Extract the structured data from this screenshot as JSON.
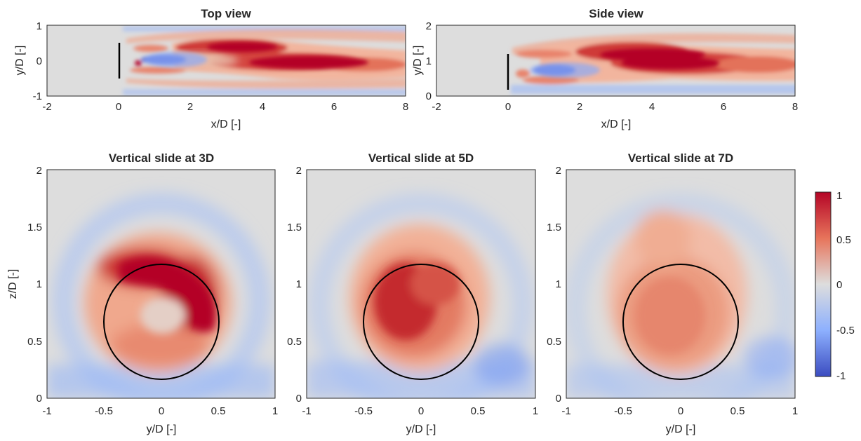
{
  "figure": {
    "colormap": {
      "low": "#3b4cc0",
      "mid": "#dddddd",
      "high": "#b40426"
    },
    "colorbar": {
      "range": [
        -1,
        1
      ],
      "ticks": [
        "1",
        "0.5",
        "0",
        "-0.5",
        "-1"
      ]
    }
  },
  "chart_data": [
    {
      "type": "heatmap",
      "title": "Top view",
      "xlabel": "x/D [-]",
      "ylabel": "y/D [-]",
      "xlim": [
        -2,
        8
      ],
      "ylim": [
        -1,
        1
      ],
      "xticks": [
        "-2",
        "0",
        "2",
        "4",
        "6",
        "8"
      ],
      "yticks": [
        "-1",
        "0",
        "1"
      ],
      "turbine": {
        "x": 0,
        "y_range": [
          -0.5,
          0.5
        ]
      },
      "grid": false
    },
    {
      "type": "heatmap",
      "title": "Side view",
      "xlabel": "x/D [-]",
      "ylabel": "y/D [-]",
      "xlim": [
        -2,
        8
      ],
      "ylim": [
        0,
        2
      ],
      "xticks": [
        "-2",
        "0",
        "2",
        "4",
        "6",
        "8"
      ],
      "yticks": [
        "0",
        "1",
        "2"
      ],
      "turbine": {
        "x": 0,
        "y_range": [
          0.17,
          1.17
        ]
      },
      "grid": false
    },
    {
      "type": "heatmap",
      "title": "Vertical slide at 3D",
      "xlabel": "y/D [-]",
      "ylabel": "z/D [-]",
      "xlim": [
        -1,
        1
      ],
      "ylim": [
        0,
        2
      ],
      "xticks": [
        "-1",
        "-0.5",
        "0",
        "0.5",
        "1"
      ],
      "yticks": [
        "0",
        "0.5",
        "1",
        "1.5",
        "2"
      ],
      "rotor_circle": {
        "center": [
          0,
          0.67
        ],
        "radius": 0.5
      },
      "grid": false
    },
    {
      "type": "heatmap",
      "title": "Vertical slide at 5D",
      "xlabel": "y/D [-]",
      "ylabel": "",
      "xlim": [
        -1,
        1
      ],
      "ylim": [
        0,
        2
      ],
      "xticks": [
        "-1",
        "-0.5",
        "0",
        "0.5",
        "1"
      ],
      "yticks": [
        "0",
        "0.5",
        "1",
        "1.5",
        "2"
      ],
      "rotor_circle": {
        "center": [
          0,
          0.67
        ],
        "radius": 0.5
      },
      "grid": false
    },
    {
      "type": "heatmap",
      "title": "Vertical slide at 7D",
      "xlabel": "y/D [-]",
      "ylabel": "",
      "xlim": [
        -1,
        1
      ],
      "ylim": [
        0,
        2
      ],
      "xticks": [
        "-1",
        "-0.5",
        "0",
        "0.5",
        "1"
      ],
      "yticks": [
        "0",
        "0.5",
        "1",
        "1.5",
        "2"
      ],
      "rotor_circle": {
        "center": [
          0,
          0.67
        ],
        "radius": 0.5
      },
      "grid": false
    }
  ]
}
